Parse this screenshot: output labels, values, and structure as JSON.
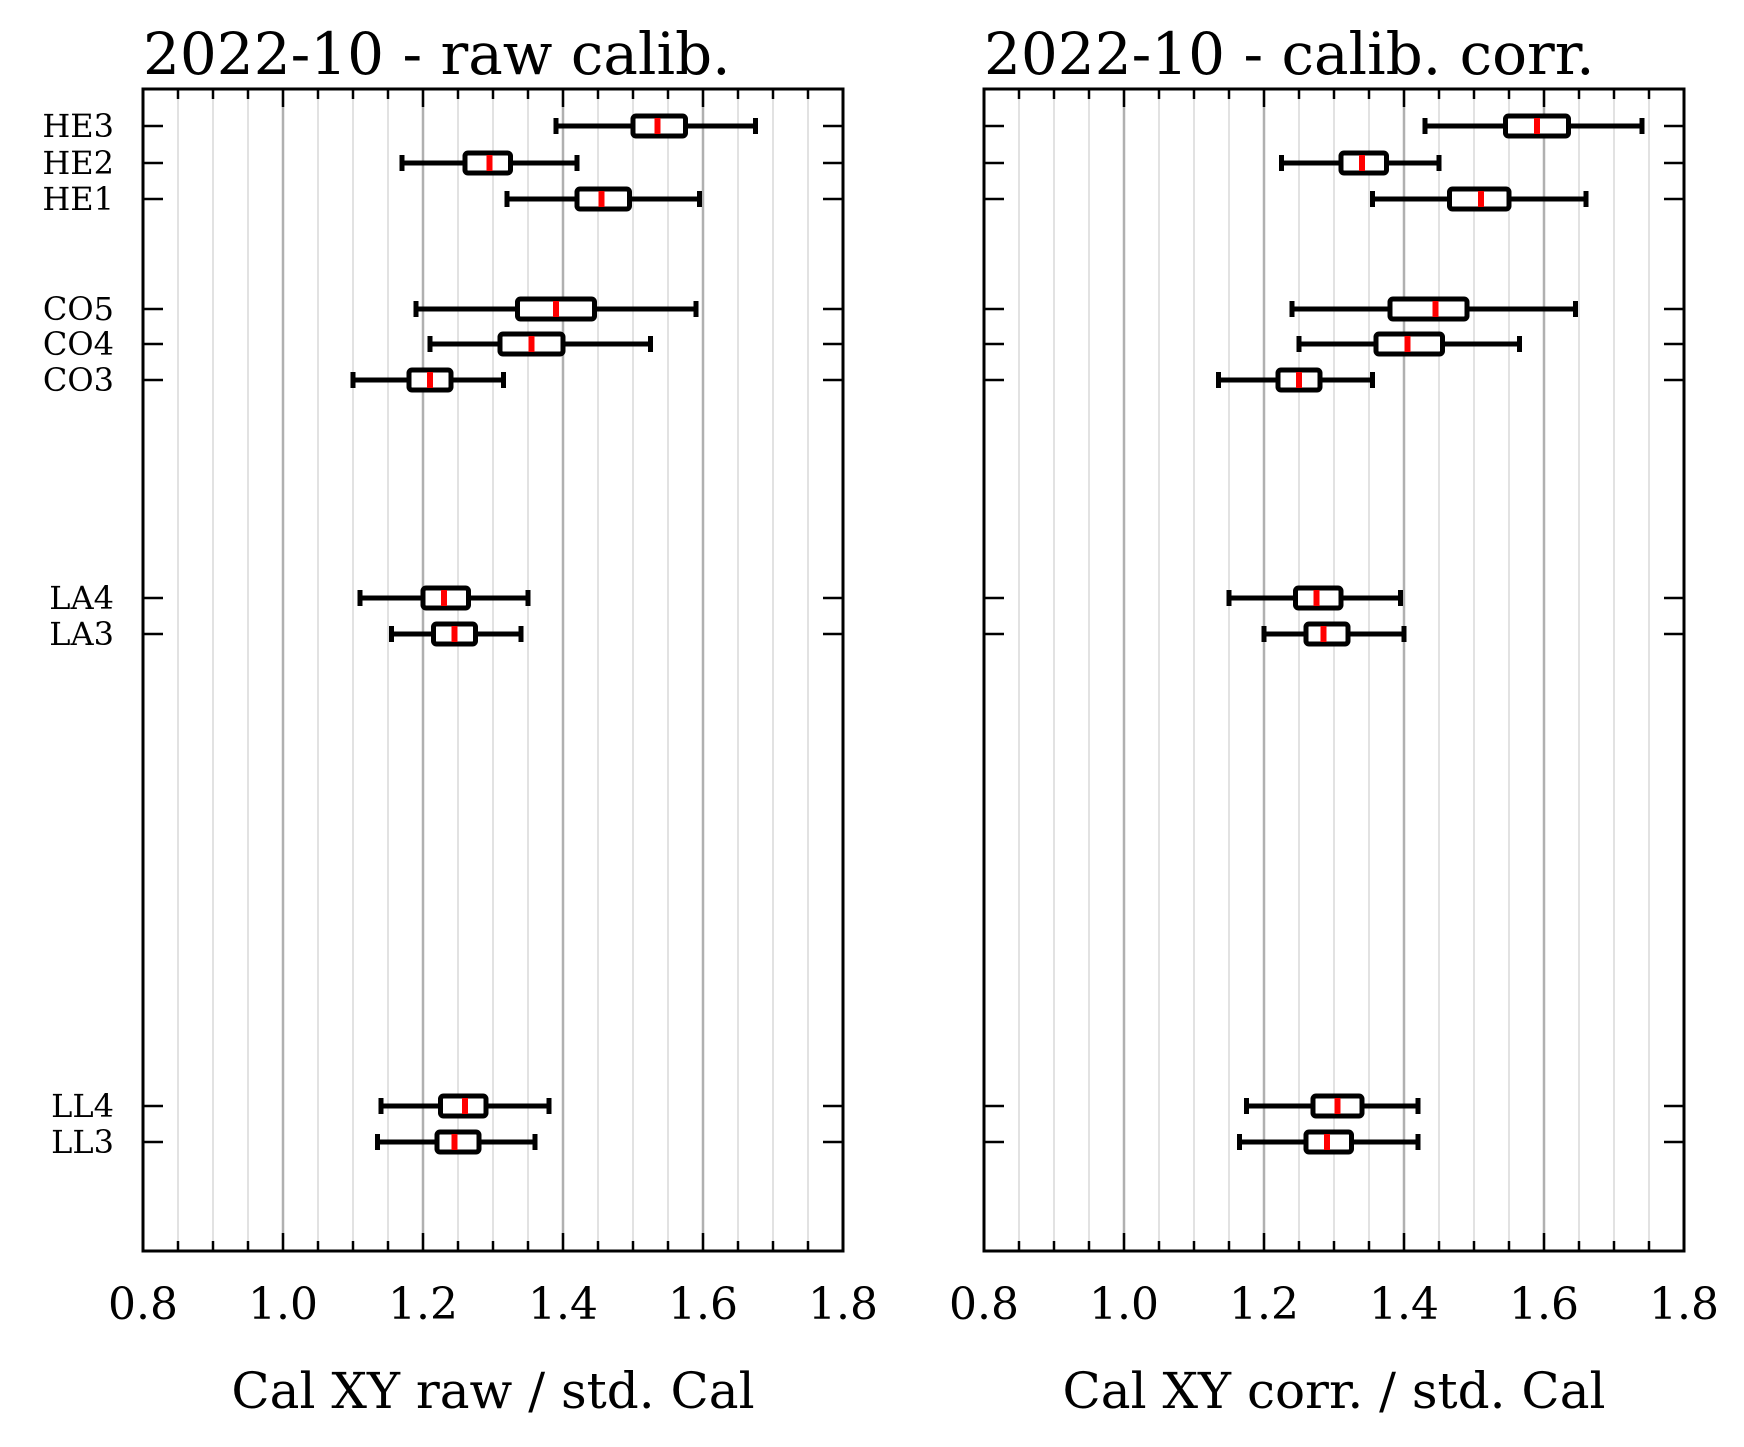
{
  "chart_data": [
    {
      "type": "boxplot",
      "title": "2022-10 - raw calib.",
      "xlabel": "Cal XY raw / std. Cal",
      "ylabel": "",
      "xlim": [
        0.8,
        1.8
      ],
      "xticks": [
        "0.8",
        "1.0",
        "1.2",
        "1.4",
        "1.6",
        "1.8"
      ],
      "grid": "vertical",
      "categories": [
        "HE3",
        "HE2",
        "HE1",
        "CO5",
        "CO4",
        "CO3",
        "LA4",
        "LA3",
        "LL4",
        "LL3"
      ],
      "boxes": [
        {
          "label": "HE3",
          "whisker_low": 1.39,
          "q1": 1.5,
          "median": 1.535,
          "q3": 1.575,
          "whisker_high": 1.675
        },
        {
          "label": "HE2",
          "whisker_low": 1.17,
          "q1": 1.26,
          "median": 1.295,
          "q3": 1.325,
          "whisker_high": 1.42
        },
        {
          "label": "HE1",
          "whisker_low": 1.32,
          "q1": 1.42,
          "median": 1.455,
          "q3": 1.495,
          "whisker_high": 1.595
        },
        {
          "label": "CO5",
          "whisker_low": 1.19,
          "q1": 1.335,
          "median": 1.39,
          "q3": 1.445,
          "whisker_high": 1.59
        },
        {
          "label": "CO4",
          "whisker_low": 1.21,
          "q1": 1.31,
          "median": 1.355,
          "q3": 1.4,
          "whisker_high": 1.525
        },
        {
          "label": "CO3",
          "whisker_low": 1.1,
          "q1": 1.18,
          "median": 1.21,
          "q3": 1.24,
          "whisker_high": 1.315
        },
        {
          "label": "LA4",
          "whisker_low": 1.11,
          "q1": 1.2,
          "median": 1.23,
          "q3": 1.265,
          "whisker_high": 1.35
        },
        {
          "label": "LA3",
          "whisker_low": 1.155,
          "q1": 1.215,
          "median": 1.245,
          "q3": 1.275,
          "whisker_high": 1.34
        },
        {
          "label": "LL4",
          "whisker_low": 1.14,
          "q1": 1.225,
          "median": 1.26,
          "q3": 1.29,
          "whisker_high": 1.38
        },
        {
          "label": "LL3",
          "whisker_low": 1.135,
          "q1": 1.22,
          "median": 1.245,
          "q3": 1.28,
          "whisker_high": 1.36
        }
      ]
    },
    {
      "type": "boxplot",
      "title": "2022-10 - calib. corr.",
      "xlabel": "Cal XY corr. / std. Cal",
      "ylabel": "",
      "xlim": [
        0.8,
        1.8
      ],
      "xticks": [
        "0.8",
        "1.0",
        "1.2",
        "1.4",
        "1.6",
        "1.8"
      ],
      "grid": "vertical",
      "categories": [
        "HE3",
        "HE2",
        "HE1",
        "CO5",
        "CO4",
        "CO3",
        "LA4",
        "LA3",
        "LL4",
        "LL3"
      ],
      "boxes": [
        {
          "label": "HE3",
          "whisker_low": 1.43,
          "q1": 1.545,
          "median": 1.59,
          "q3": 1.635,
          "whisker_high": 1.74
        },
        {
          "label": "HE2",
          "whisker_low": 1.225,
          "q1": 1.31,
          "median": 1.34,
          "q3": 1.375,
          "whisker_high": 1.45
        },
        {
          "label": "HE1",
          "whisker_low": 1.355,
          "q1": 1.465,
          "median": 1.51,
          "q3": 1.55,
          "whisker_high": 1.66
        },
        {
          "label": "CO5",
          "whisker_low": 1.24,
          "q1": 1.38,
          "median": 1.445,
          "q3": 1.49,
          "whisker_high": 1.645
        },
        {
          "label": "CO4",
          "whisker_low": 1.25,
          "q1": 1.36,
          "median": 1.405,
          "q3": 1.455,
          "whisker_high": 1.565
        },
        {
          "label": "CO3",
          "whisker_low": 1.135,
          "q1": 1.22,
          "median": 1.25,
          "q3": 1.28,
          "whisker_high": 1.355
        },
        {
          "label": "LA4",
          "whisker_low": 1.15,
          "q1": 1.245,
          "median": 1.275,
          "q3": 1.31,
          "whisker_high": 1.395
        },
        {
          "label": "LA3",
          "whisker_low": 1.2,
          "q1": 1.26,
          "median": 1.285,
          "q3": 1.32,
          "whisker_high": 1.4
        },
        {
          "label": "LL4",
          "whisker_low": 1.175,
          "q1": 1.27,
          "median": 1.305,
          "q3": 1.34,
          "whisker_high": 1.42
        },
        {
          "label": "LL3",
          "whisker_low": 1.165,
          "q1": 1.26,
          "median": 1.29,
          "q3": 1.325,
          "whisker_high": 1.42
        }
      ]
    }
  ],
  "colors": {
    "box": "#000000",
    "median": "#ff0000",
    "grid_major": "#b0b0b0",
    "grid_minor": "#e2e2e2"
  }
}
